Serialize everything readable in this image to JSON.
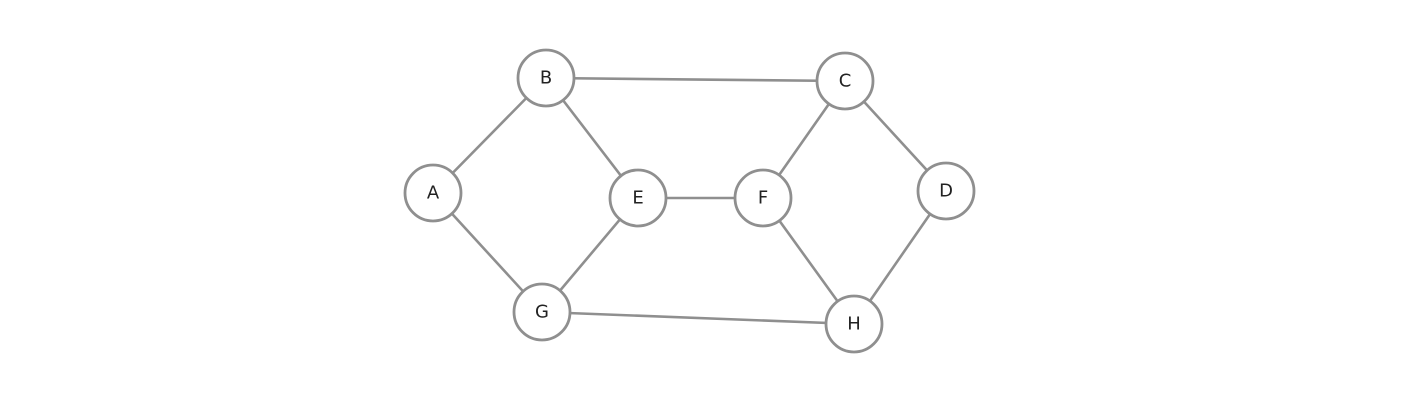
{
  "graph": {
    "nodes": [
      {
        "id": "A",
        "label": "A"
      },
      {
        "id": "B",
        "label": "B"
      },
      {
        "id": "C",
        "label": "C"
      },
      {
        "id": "D",
        "label": "D"
      },
      {
        "id": "E",
        "label": "E"
      },
      {
        "id": "F",
        "label": "F"
      },
      {
        "id": "G",
        "label": "G"
      },
      {
        "id": "H",
        "label": "H"
      }
    ],
    "edges": [
      {
        "from": "A",
        "to": "B"
      },
      {
        "from": "A",
        "to": "G"
      },
      {
        "from": "B",
        "to": "C"
      },
      {
        "from": "B",
        "to": "E"
      },
      {
        "from": "E",
        "to": "F"
      },
      {
        "from": "E",
        "to": "G"
      },
      {
        "from": "C",
        "to": "F"
      },
      {
        "from": "C",
        "to": "D"
      },
      {
        "from": "F",
        "to": "H"
      },
      {
        "from": "D",
        "to": "H"
      },
      {
        "from": "G",
        "to": "H"
      }
    ]
  }
}
